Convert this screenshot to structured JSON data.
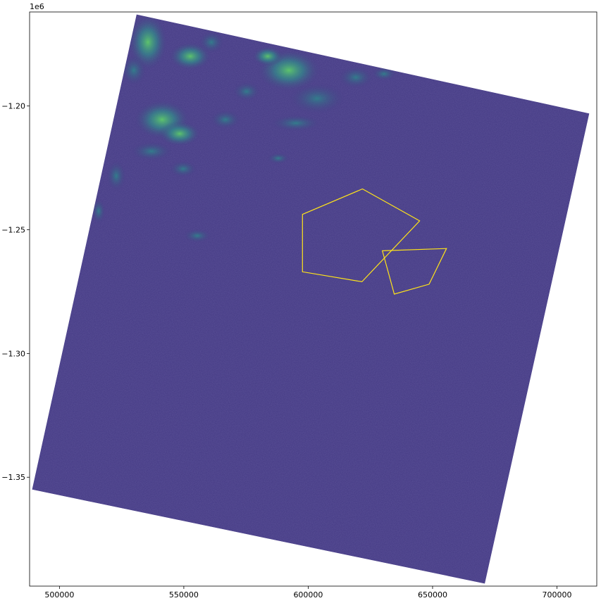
{
  "chart_data": {
    "type": "raster-map",
    "title": "",
    "xlabel": "",
    "ylabel": "",
    "offset_label": "1e6",
    "xlim": [
      488000,
      716000
    ],
    "ylim": [
      -1394000,
      -1162000
    ],
    "y_axis_multiplier": 1000000,
    "x_ticks": [
      {
        "value": 500000,
        "label": "500000"
      },
      {
        "value": 550000,
        "label": "550000"
      },
      {
        "value": 600000,
        "label": "600000"
      },
      {
        "value": 650000,
        "label": "650000"
      },
      {
        "value": 700000,
        "label": "700000"
      }
    ],
    "y_ticks": [
      {
        "value": -1200000,
        "label": "−1.20"
      },
      {
        "value": -1250000,
        "label": "−1.25"
      },
      {
        "value": -1300000,
        "label": "−1.30"
      },
      {
        "value": -1350000,
        "label": "−1.35"
      }
    ],
    "grid": false,
    "raster": {
      "colormap": "viridis",
      "fill_color": "#433983",
      "footprint_corners": [
        {
          "x": 531000,
          "y": -1163000
        },
        {
          "x": 713000,
          "y": -1203000
        },
        {
          "x": 671000,
          "y": -1393000
        },
        {
          "x": 489000,
          "y": -1355000
        }
      ]
    },
    "polygons": [
      {
        "stroke": "#ffe419",
        "vertices": [
          {
            "x": 621800,
            "y": -1233500
          },
          {
            "x": 644800,
            "y": -1246400
          },
          {
            "x": 621600,
            "y": -1271000
          },
          {
            "x": 597700,
            "y": -1267000
          },
          {
            "x": 597700,
            "y": -1243800
          }
        ]
      },
      {
        "stroke": "#ffe419",
        "vertices": [
          {
            "x": 629800,
            "y": -1258500
          },
          {
            "x": 655600,
            "y": -1257600
          },
          {
            "x": 648600,
            "y": -1272000
          },
          {
            "x": 634600,
            "y": -1276000
          }
        ]
      }
    ]
  }
}
